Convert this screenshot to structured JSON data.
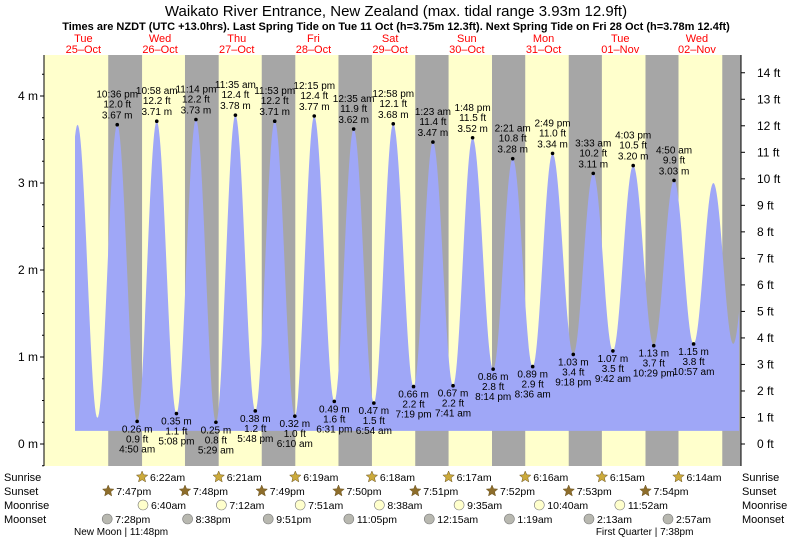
{
  "chart_data": {
    "type": "area",
    "title": "Waikato River Entrance, New Zealand (max. tidal range 3.93m 12.9ft)",
    "subtitle": "Times are NZDT (UTC +13.0hrs). Last Spring Tide on Tue 11 Oct (h=3.75m 12.3ft). Next Spring Tide on Fri 28 Oct (h=3.78m 12.4ft)",
    "ylabel_left": "m",
    "ylabel_right": "ft",
    "ylim_m": [
      -0.3,
      4.48
    ],
    "left_ticks": [
      "0 m",
      "1 m",
      "2 m",
      "3 m",
      "4 m"
    ],
    "right_ticks": [
      "0 ft",
      "1 ft",
      "2 ft",
      "3 ft",
      "4 ft",
      "5 ft",
      "6 ft",
      "7 ft",
      "8 ft",
      "9 ft",
      "10 ft",
      "11 ft",
      "12 ft",
      "13 ft",
      "14 ft"
    ],
    "days": [
      {
        "dow": "Tue",
        "date": "25–Oct"
      },
      {
        "dow": "Wed",
        "date": "26–Oct"
      },
      {
        "dow": "Thu",
        "date": "27–Oct"
      },
      {
        "dow": "Fri",
        "date": "28–Oct"
      },
      {
        "dow": "Sat",
        "date": "29–Oct"
      },
      {
        "dow": "Sun",
        "date": "30–Oct"
      },
      {
        "dow": "Mon",
        "date": "31–Oct"
      },
      {
        "dow": "Tue",
        "date": "01–Nov"
      },
      {
        "dow": "Wed",
        "date": "02–Nov"
      }
    ],
    "tides": [
      {
        "type": "high",
        "time": "10:36 pm",
        "ft": "12.0 ft",
        "m": "3.67 m",
        "day": 0,
        "hour": 22.6,
        "h": 3.67
      },
      {
        "type": "low",
        "time": "4:50 am",
        "ft": "0.9 ft",
        "m": "0.26 m",
        "day": 1,
        "hour": 4.83,
        "h": 0.26
      },
      {
        "type": "high",
        "time": "10:58 am",
        "ft": "12.2 ft",
        "m": "3.71 m",
        "day": 1,
        "hour": 10.97,
        "h": 3.71
      },
      {
        "type": "low",
        "time": "5:08 pm",
        "ft": "1.1 ft",
        "m": "0.35 m",
        "day": 1,
        "hour": 17.13,
        "h": 0.35
      },
      {
        "type": "high",
        "time": "11:14 pm",
        "ft": "12.2 ft",
        "m": "3.73 m",
        "day": 1,
        "hour": 23.23,
        "h": 3.73
      },
      {
        "type": "low",
        "time": "5:29 am",
        "ft": "0.8 ft",
        "m": "0.25 m",
        "day": 2,
        "hour": 5.48,
        "h": 0.25
      },
      {
        "type": "high",
        "time": "11:35 am",
        "ft": "12.4 ft",
        "m": "3.78 m",
        "day": 2,
        "hour": 11.58,
        "h": 3.78
      },
      {
        "type": "low",
        "time": "5:48 pm",
        "ft": "1.2 ft",
        "m": "0.38 m",
        "day": 2,
        "hour": 17.8,
        "h": 0.38
      },
      {
        "type": "high",
        "time": "11:53 pm",
        "ft": "12.2 ft",
        "m": "3.71 m",
        "day": 2,
        "hour": 23.88,
        "h": 3.71
      },
      {
        "type": "low",
        "time": "6:10 am",
        "ft": "1.0 ft",
        "m": "0.32 m",
        "day": 3,
        "hour": 6.17,
        "h": 0.32
      },
      {
        "type": "high",
        "time": "12:15 pm",
        "ft": "12.4 ft",
        "m": "3.77 m",
        "day": 3,
        "hour": 12.25,
        "h": 3.77
      },
      {
        "type": "low",
        "time": "6:31 pm",
        "ft": "1.6 ft",
        "m": "0.49 m",
        "day": 3,
        "hour": 18.52,
        "h": 0.49
      },
      {
        "type": "high",
        "time": "12:35 am",
        "ft": "11.9 ft",
        "m": "3.62 m",
        "day": 4,
        "hour": 0.58,
        "h": 3.62
      },
      {
        "type": "low",
        "time": "6:54 am",
        "ft": "1.5 ft",
        "m": "0.47 m",
        "day": 4,
        "hour": 6.9,
        "h": 0.47
      },
      {
        "type": "high",
        "time": "12:58 pm",
        "ft": "12.1 ft",
        "m": "3.68 m",
        "day": 4,
        "hour": 12.97,
        "h": 3.68
      },
      {
        "type": "low",
        "time": "7:19 pm",
        "ft": "2.2 ft",
        "m": "0.66 m",
        "day": 4,
        "hour": 19.32,
        "h": 0.66
      },
      {
        "type": "high",
        "time": "1:23 am",
        "ft": "11.4 ft",
        "m": "3.47 m",
        "day": 5,
        "hour": 1.38,
        "h": 3.47
      },
      {
        "type": "low",
        "time": "7:41 am",
        "ft": "2.2 ft",
        "m": "0.67 m",
        "day": 5,
        "hour": 7.68,
        "h": 0.67
      },
      {
        "type": "high",
        "time": "1:48 pm",
        "ft": "11.5 ft",
        "m": "3.52 m",
        "day": 5,
        "hour": 13.8,
        "h": 3.52
      },
      {
        "type": "low",
        "time": "8:14 pm",
        "ft": "2.8 ft",
        "m": "0.86 m",
        "day": 5,
        "hour": 20.23,
        "h": 0.86
      },
      {
        "type": "high",
        "time": "2:21 am",
        "ft": "10.8 ft",
        "m": "3.28 m",
        "day": 6,
        "hour": 2.35,
        "h": 3.28
      },
      {
        "type": "low",
        "time": "8:36 am",
        "ft": "2.9 ft",
        "m": "0.89 m",
        "day": 6,
        "hour": 8.6,
        "h": 0.89
      },
      {
        "type": "high",
        "time": "2:49 pm",
        "ft": "11.0 ft",
        "m": "3.34 m",
        "day": 6,
        "hour": 14.82,
        "h": 3.34
      },
      {
        "type": "low",
        "time": "9:18 pm",
        "ft": "3.4 ft",
        "m": "1.03 m",
        "day": 6,
        "hour": 21.3,
        "h": 1.03
      },
      {
        "type": "high",
        "time": "3:33 am",
        "ft": "10.2 ft",
        "m": "3.11 m",
        "day": 7,
        "hour": 3.55,
        "h": 3.11
      },
      {
        "type": "low",
        "time": "9:42 am",
        "ft": "3.5 ft",
        "m": "1.07 m",
        "day": 7,
        "hour": 9.7,
        "h": 1.07
      },
      {
        "type": "high",
        "time": "4:03 pm",
        "ft": "10.5 ft",
        "m": "3.20 m",
        "day": 7,
        "hour": 16.05,
        "h": 3.2
      },
      {
        "type": "low",
        "time": "10:29 pm",
        "ft": "3.7 ft",
        "m": "1.13 m",
        "day": 7,
        "hour": 22.48,
        "h": 1.13
      },
      {
        "type": "high",
        "time": "4:50 am",
        "ft": "9.9 ft",
        "m": "3.03 m",
        "day": 8,
        "hour": 4.83,
        "h": 3.03
      },
      {
        "type": "low",
        "time": "10:57 am",
        "ft": "3.8 ft",
        "m": "1.15 m",
        "day": 8,
        "hour": 10.95,
        "h": 1.15
      }
    ],
    "astro": {
      "labels": {
        "sunrise": "Sunrise",
        "sunset": "Sunset",
        "moonrise": "Moonrise",
        "moonset": "Moonset"
      },
      "sunrise": [
        {
          "time": "6:22am",
          "day": 1,
          "hour": 6.37
        },
        {
          "time": "6:21am",
          "day": 2,
          "hour": 6.35
        },
        {
          "time": "6:19am",
          "day": 3,
          "hour": 6.32
        },
        {
          "time": "6:18am",
          "day": 4,
          "hour": 6.3
        },
        {
          "time": "6:17am",
          "day": 5,
          "hour": 6.28
        },
        {
          "time": "6:16am",
          "day": 6,
          "hour": 6.27
        },
        {
          "time": "6:15am",
          "day": 7,
          "hour": 6.25
        },
        {
          "time": "6:14am",
          "day": 8,
          "hour": 6.23
        }
      ],
      "sunset": [
        {
          "time": "7:47pm",
          "day": 0,
          "hour": 19.78
        },
        {
          "time": "7:48pm",
          "day": 1,
          "hour": 19.8
        },
        {
          "time": "7:49pm",
          "day": 2,
          "hour": 19.82
        },
        {
          "time": "7:50pm",
          "day": 3,
          "hour": 19.83
        },
        {
          "time": "7:51pm",
          "day": 4,
          "hour": 19.85
        },
        {
          "time": "7:52pm",
          "day": 5,
          "hour": 19.87
        },
        {
          "time": "7:53pm",
          "day": 6,
          "hour": 19.88
        },
        {
          "time": "7:54pm",
          "day": 7,
          "hour": 19.9
        }
      ],
      "moonrise": [
        {
          "time": "6:40am",
          "day": 1,
          "hour": 6.67
        },
        {
          "time": "7:12am",
          "day": 2,
          "hour": 7.2
        },
        {
          "time": "7:51am",
          "day": 3,
          "hour": 7.85
        },
        {
          "time": "8:38am",
          "day": 4,
          "hour": 8.63
        },
        {
          "time": "9:35am",
          "day": 5,
          "hour": 9.58
        },
        {
          "time": "10:40am",
          "day": 6,
          "hour": 10.67
        },
        {
          "time": "11:52am",
          "day": 7,
          "hour": 11.87
        }
      ],
      "moonset": [
        {
          "time": "7:28pm",
          "day": 0,
          "hour": 19.47
        },
        {
          "time": "8:38pm",
          "day": 1,
          "hour": 20.63
        },
        {
          "time": "9:51pm",
          "day": 2,
          "hour": 21.85
        },
        {
          "time": "11:05pm",
          "day": 3,
          "hour": 23.08
        },
        {
          "time": "12:15am",
          "day": 5,
          "hour": 0.25
        },
        {
          "time": "1:19am",
          "day": 6,
          "hour": 1.32
        },
        {
          "time": "2:13am",
          "day": 7,
          "hour": 2.22
        },
        {
          "time": "2:57am",
          "day": 8,
          "hour": 2.95
        }
      ],
      "phases": [
        {
          "label": "New Moon | 11:48pm",
          "day": 0,
          "hour": 23.8
        },
        {
          "label": "First Quarter | 7:38pm",
          "day": 7,
          "hour": 19.63
        }
      ]
    },
    "colors": {
      "night": "#a6a6a6",
      "day": "#ffffcc",
      "water": "#9fa7f7",
      "title": "#000000",
      "date": "#ff0000",
      "sun": "#cbaa3c",
      "sunset": "#8d6d2b",
      "moonrise": "#ffffcc",
      "moonset": "#b8b8b0"
    }
  }
}
